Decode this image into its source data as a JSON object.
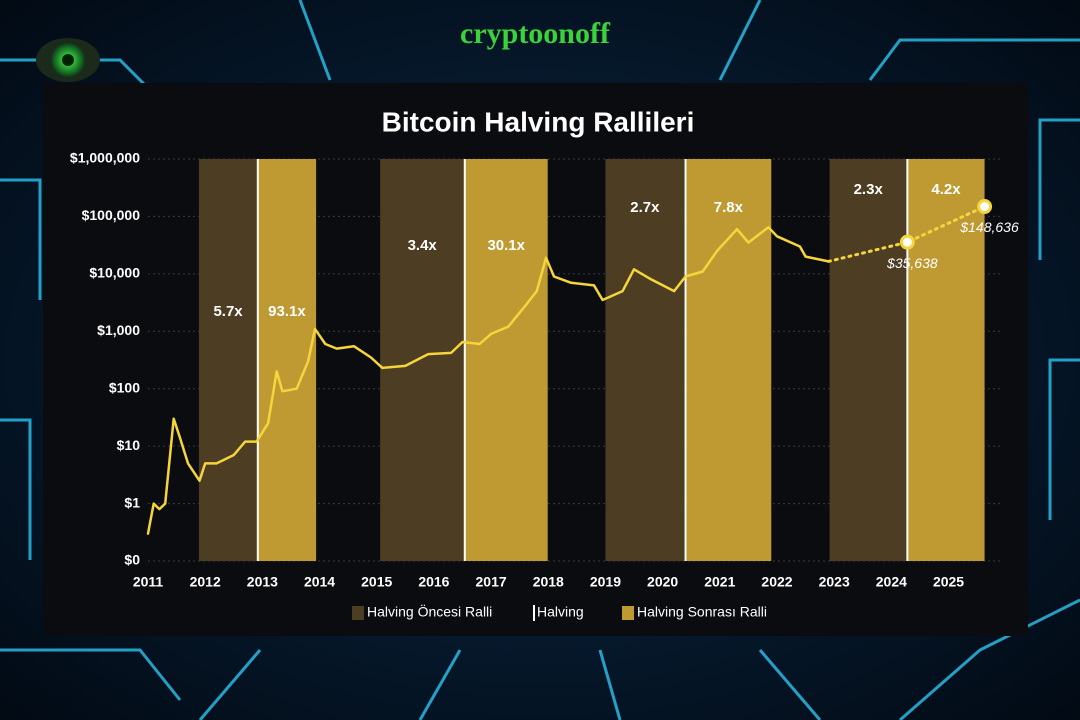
{
  "watermark": "cryptoonoff",
  "chart_data": {
    "type": "line",
    "title": "Bitcoin Halving Rallileri",
    "log_scale_y": true,
    "xlim": [
      2011,
      2025.9
    ],
    "xticks": [
      2011,
      2012,
      2013,
      2014,
      2015,
      2016,
      2017,
      2018,
      2019,
      2020,
      2021,
      2022,
      2023,
      2024,
      2025
    ],
    "ylim": [
      0.1,
      1000000
    ],
    "yticks": [
      {
        "value": 0.1,
        "label": "$0"
      },
      {
        "value": 1,
        "label": "$1"
      },
      {
        "value": 10,
        "label": "$10"
      },
      {
        "value": 100,
        "label": "$100"
      },
      {
        "value": 1000,
        "label": "$1,000"
      },
      {
        "value": 10000,
        "label": "$10,000"
      },
      {
        "value": 100000,
        "label": "$100,000"
      },
      {
        "value": 1000000,
        "label": "$1,000,000"
      }
    ],
    "series": [
      {
        "color": "#f6d53c",
        "style": "solid",
        "x": [
          2011.0,
          2011.1,
          2011.2,
          2011.3,
          2011.45,
          2011.55,
          2011.7,
          2011.9,
          2012.0,
          2012.2,
          2012.5,
          2012.7,
          2012.9,
          2013.1,
          2013.25,
          2013.35,
          2013.6,
          2013.8,
          2013.92,
          2014.1,
          2014.3,
          2014.6,
          2014.9,
          2015.1,
          2015.5,
          2015.9,
          2016.3,
          2016.5,
          2016.8,
          2017.0,
          2017.3,
          2017.6,
          2017.8,
          2017.96,
          2018.1,
          2018.4,
          2018.8,
          2018.95,
          2019.3,
          2019.5,
          2019.8,
          2020.2,
          2020.4,
          2020.7,
          2020.95,
          2021.3,
          2021.5,
          2021.85,
          2022.0,
          2022.4,
          2022.5,
          2022.9
        ],
        "values": [
          0.3,
          1,
          0.8,
          1,
          30,
          15,
          5,
          2.5,
          5,
          5,
          7,
          12,
          12,
          25,
          200,
          90,
          100,
          300,
          1100,
          600,
          500,
          550,
          350,
          230,
          250,
          400,
          420,
          650,
          600,
          900,
          1200,
          2800,
          5000,
          19000,
          9000,
          7000,
          6300,
          3500,
          5000,
          12000,
          8000,
          5000,
          9000,
          11000,
          25000,
          60000,
          35000,
          65000,
          45000,
          30000,
          20000,
          16500
        ]
      },
      {
        "color": "#f6d53c",
        "style": "dotted",
        "x": [
          2022.9,
          2024.28,
          2025.63
        ],
        "values": [
          16500,
          35638,
          148636
        ],
        "value_labels": [
          null,
          "$35,638",
          "$148,636"
        ]
      }
    ],
    "pre_halving": {
      "name": "Halving Öncesi Ralli",
      "color": "#4d3d22",
      "ranges": [
        [
          2011.89,
          2012.91
        ],
        [
          2015.06,
          2016.53
        ],
        [
          2019.0,
          2020.38
        ],
        [
          2022.92,
          2024.27
        ]
      ],
      "values": [
        5.7,
        3.4,
        2.7,
        2.3
      ],
      "value_labels": [
        "5.7x",
        "3.4x",
        "2.7x",
        "2.3x"
      ]
    },
    "halvings": {
      "name": "Halving",
      "color": "#ffffff",
      "x": [
        2012.92,
        2016.54,
        2020.4,
        2024.28
      ]
    },
    "post_halving": {
      "name": "Halving Sonrası Ralli",
      "color": "#bf9a32",
      "ranges": [
        [
          2012.92,
          2013.94
        ],
        [
          2016.54,
          2017.99
        ],
        [
          2020.4,
          2021.9
        ],
        [
          2024.28,
          2025.63
        ]
      ],
      "values": [
        93.1,
        30.1,
        7.8,
        4.2
      ],
      "value_labels": [
        "93.1x",
        "30.1x",
        "7.8x",
        "4.2x"
      ]
    }
  }
}
